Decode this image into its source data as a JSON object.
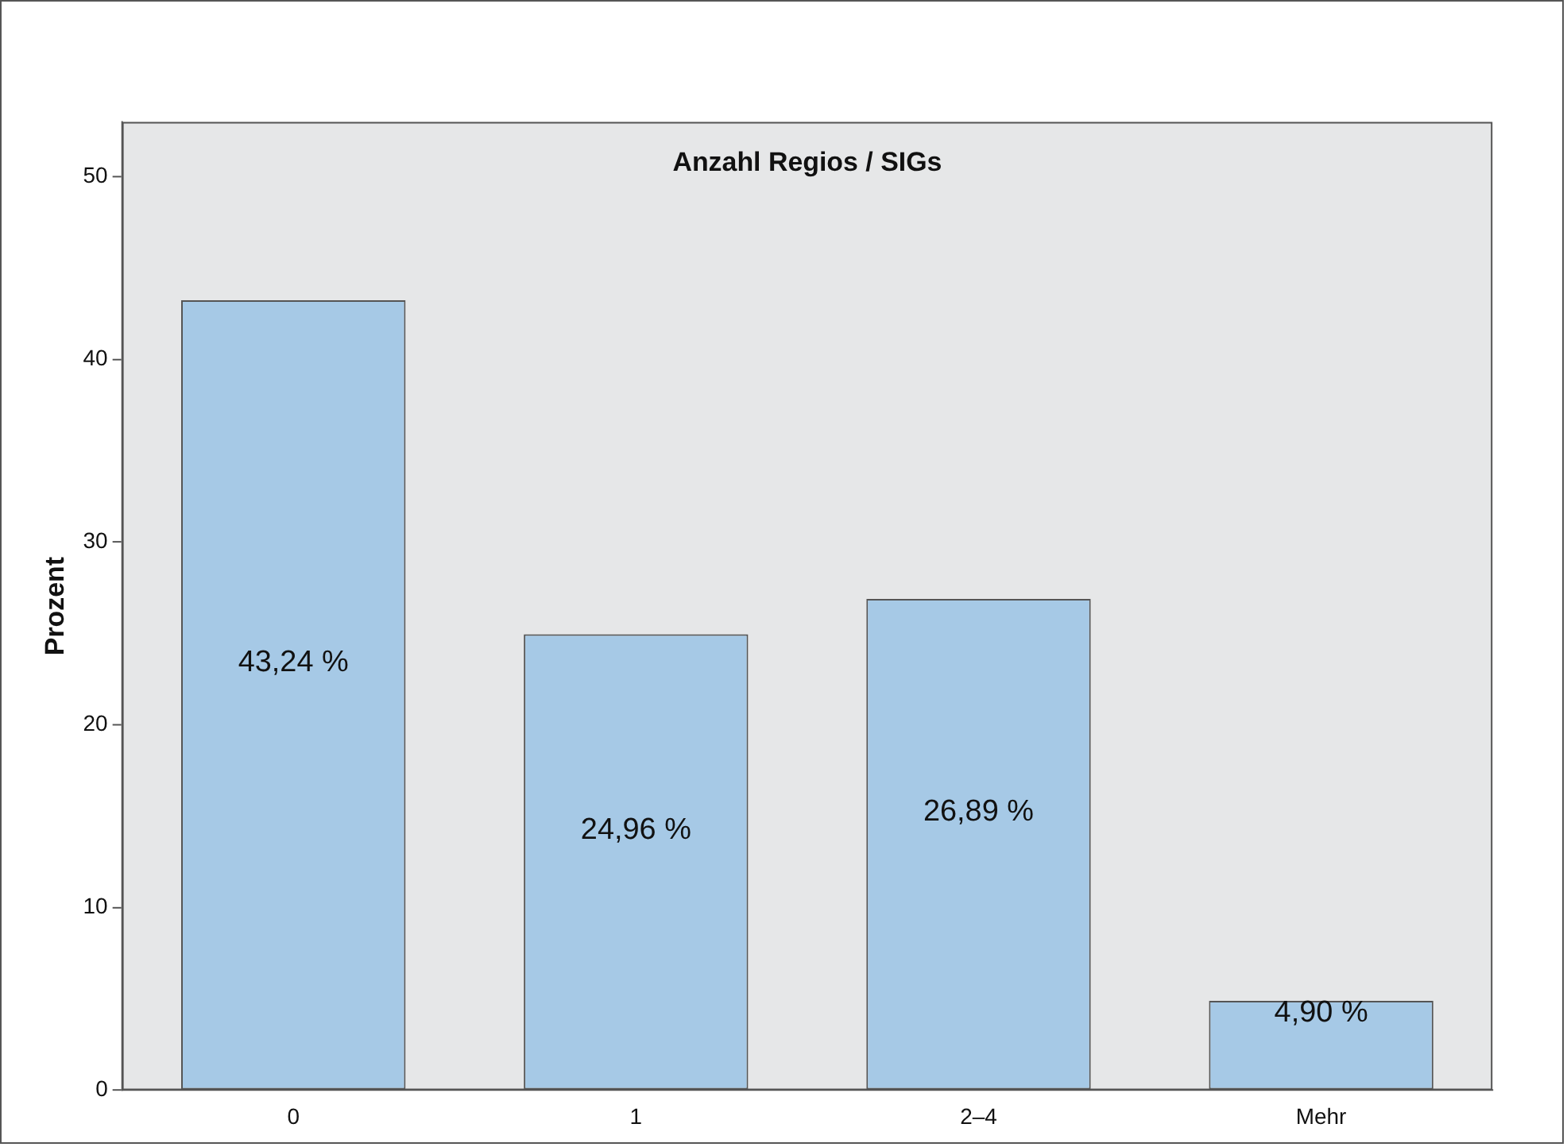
{
  "chart_data": {
    "type": "bar",
    "title": "Anzahl Regios / SIGs",
    "ylabel": "Prozent",
    "categories": [
      "0",
      "1",
      "2–4",
      "Mehr"
    ],
    "values": [
      43.24,
      24.96,
      26.89,
      4.9
    ],
    "value_labels": [
      "43,24 %",
      "24,96 %",
      "26,89 %",
      "4,90 %"
    ],
    "color": "#a6c9e6",
    "ylim": [
      0,
      53
    ],
    "yticks": [
      0,
      10,
      20,
      30,
      40,
      50
    ],
    "grid": false,
    "legend": false
  }
}
